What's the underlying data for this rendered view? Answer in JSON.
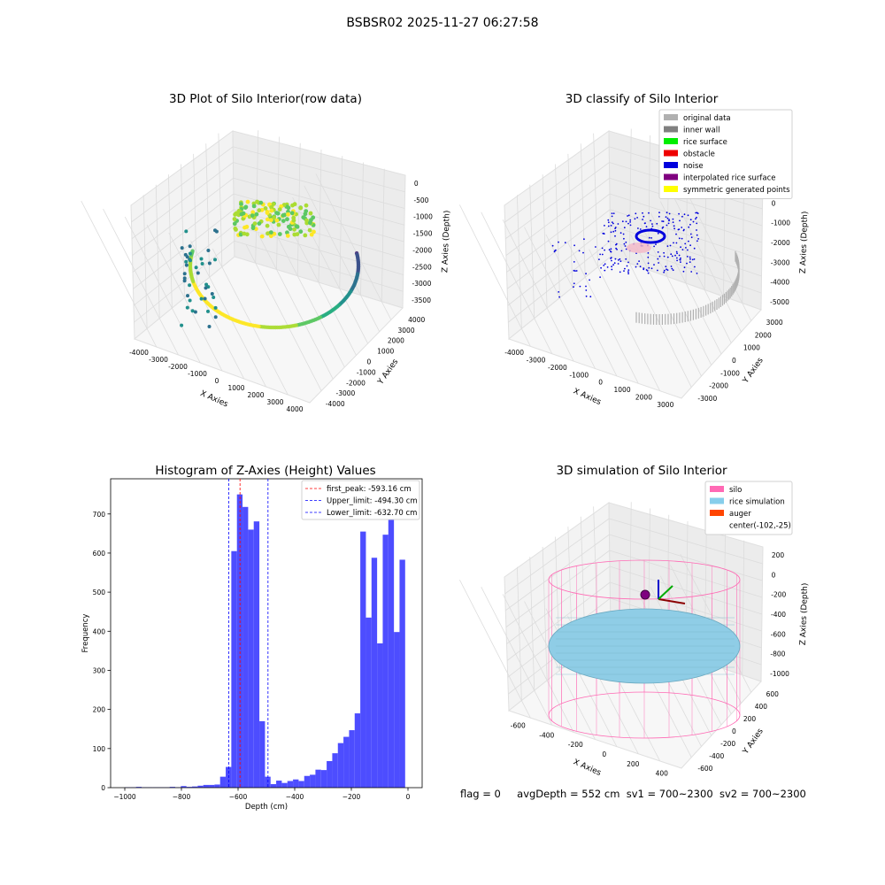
{
  "figure": {
    "suptitle": "BSBSR02 2025-11-27 06:27:58",
    "status": {
      "flag": "flag = 0",
      "avg_depth": "avgDepth = 552 cm",
      "sv1": "sv1 = 700~2300",
      "sv2": "sv2 = 700~2300"
    }
  },
  "panels": {
    "raw": {
      "title": "3D Plot of Silo Interior(row data)",
      "xlabel": "X Axies",
      "ylabel": "Y Axies",
      "zlabel": "Z Axies (Depth)",
      "xticks": [
        "-4000",
        "-3000",
        "-2000",
        "-1000",
        "0",
        "1000",
        "2000",
        "3000",
        "4000"
      ],
      "yticks": [
        "-4000",
        "-3000",
        "-2000",
        "-1000",
        "0",
        "1000",
        "2000",
        "3000",
        "4000"
      ],
      "zticks": [
        "0",
        "-500",
        "-1000",
        "-1500",
        "-2000",
        "-2500",
        "-3000",
        "-3500"
      ]
    },
    "classify": {
      "title": "3D classify of Silo Interior",
      "xlabel": "X Axies",
      "ylabel": "Y Axies",
      "zlabel": "Z Axies (Depth)",
      "xticks": [
        "-4000",
        "-3000",
        "-2000",
        "-1000",
        "0",
        "1000",
        "2000",
        "3000"
      ],
      "yticks": [
        "-3000",
        "-2000",
        "-1000",
        "0",
        "1000",
        "2000",
        "3000"
      ],
      "zticks": [
        "1000",
        "0",
        "-1000",
        "-2000",
        "-3000",
        "-4000",
        "-5000"
      ],
      "legend": [
        {
          "label": "original data",
          "color": "#b0b0b0"
        },
        {
          "label": "inner wall",
          "color": "#808080"
        },
        {
          "label": "rice surface",
          "color": "#00ee00"
        },
        {
          "label": "obstacle",
          "color": "#ee0000"
        },
        {
          "label": "noise",
          "color": "#0000dd"
        },
        {
          "label": "interpolated rice surface",
          "color": "#800080"
        },
        {
          "label": "symmetric generated points",
          "color": "#ffff00"
        }
      ]
    },
    "histogram": {
      "title": "Histogram of Z-Axies (Height) Values",
      "xlabel": "Depth (cm)",
      "ylabel": "Frequency",
      "legend": [
        {
          "label": "first_peak: -593.16 cm",
          "color": "#ff0000"
        },
        {
          "label": "Upper_limit: -494.30 cm",
          "color": "#0000ff"
        },
        {
          "label": "Lower_limit: -632.70 cm",
          "color": "#0000ff"
        }
      ]
    },
    "simulation": {
      "title": "3D simulation of Silo Interior",
      "xlabel": "X Axies",
      "ylabel": "Y Axies",
      "zlabel": "Z Axies (Depth)",
      "xticks": [
        "-600",
        "-400",
        "-200",
        "0",
        "200",
        "400"
      ],
      "yticks": [
        "-600",
        "-400",
        "-200",
        "0",
        "200",
        "400",
        "600"
      ],
      "zticks": [
        "200",
        "0",
        "-200",
        "-400",
        "-600",
        "-800",
        "-1000"
      ],
      "legend": [
        {
          "label": "silo",
          "color": "#ff69b4"
        },
        {
          "label": "rice simulation",
          "color": "#87ceeb"
        },
        {
          "label": "auger",
          "color": "#ff4500"
        },
        {
          "label": "center(-102,-25)",
          "color": ""
        }
      ]
    }
  },
  "chart_data": {
    "type": "bar",
    "title": "Histogram of Z-Axies (Height) Values",
    "xlabel": "Depth (cm)",
    "ylabel": "Frequency",
    "xlim": [
      -1050,
      50
    ],
    "ylim": [
      0,
      790
    ],
    "xticks": [
      -1000,
      -800,
      -600,
      -400,
      -200,
      0
    ],
    "yticks": [
      0,
      100,
      200,
      300,
      400,
      500,
      600,
      700
    ],
    "bin_width": 19.8,
    "bin_starts": [
      -1000,
      -980.2,
      -960.4,
      -940.6,
      -920.8,
      -901,
      -881.2,
      -861.4,
      -841.6,
      -821.8,
      -802,
      -782.2,
      -762.4,
      -742.6,
      -722.8,
      -703,
      -683.2,
      -663.4,
      -643.6,
      -623.8,
      -604,
      -584.2,
      -564.4,
      -544.6,
      -524.8,
      -505,
      -485.2,
      -465.4,
      -445.6,
      -425.8,
      -406,
      -386.2,
      -366.4,
      -346.6,
      -326.8,
      -307,
      -287.2,
      -267.4,
      -247.6,
      -227.8,
      -208,
      -188.2,
      -168.4,
      -148.6,
      -128.8,
      -109,
      -89.2,
      -69.4,
      -49.6,
      -29.8,
      -10
    ],
    "counts": [
      1,
      1,
      2,
      1,
      1,
      1,
      1,
      1,
      2,
      1,
      4,
      2,
      3,
      5,
      7,
      7,
      8,
      28,
      53,
      605,
      750,
      718,
      660,
      681,
      170,
      28,
      9,
      18,
      12,
      17,
      21,
      17,
      30,
      33,
      46,
      45,
      68,
      88,
      114,
      130,
      147,
      190,
      655,
      435,
      588,
      369,
      647,
      738,
      398,
      583,
      0
    ],
    "series": [
      {
        "name": "first_peak: -593.16 cm",
        "kind": "vline",
        "x": -593.16,
        "color": "#ff0000"
      },
      {
        "name": "Upper_limit: -494.30 cm",
        "kind": "vline",
        "x": -494.3,
        "color": "#0000ff"
      },
      {
        "name": "Lower_limit: -632.70 cm",
        "kind": "vline",
        "x": -632.7,
        "color": "#0000ff"
      }
    ],
    "bar_color": "#4d4dff",
    "legend_position": "top-right",
    "grid": false
  }
}
